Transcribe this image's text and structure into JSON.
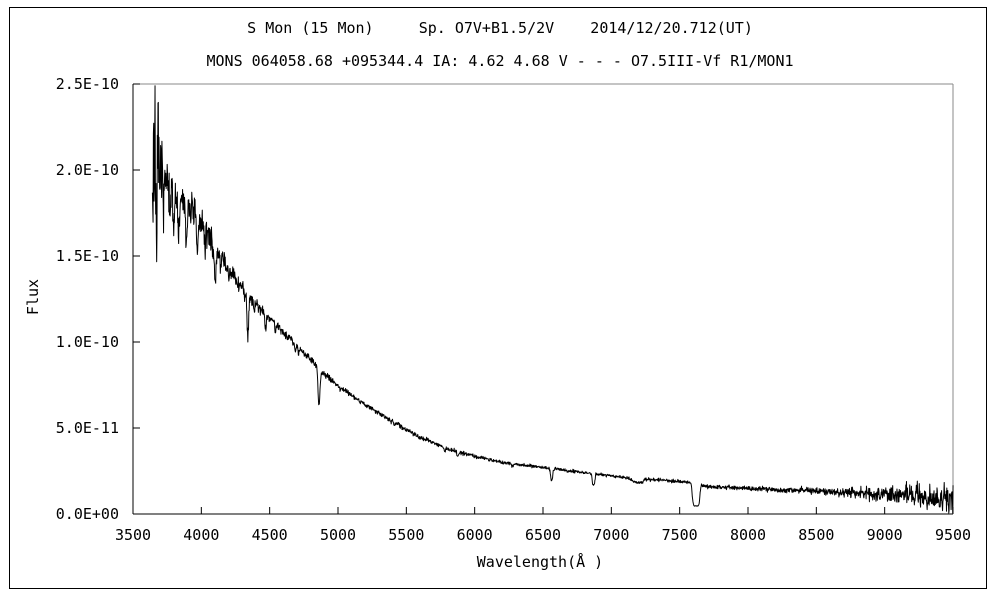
{
  "chart_data": {
    "type": "line",
    "title": "S Mon (15 Mon)     Sp. O7V+B1.5/2V    2014/12/20.712(UT)",
    "subtitle": "MONS 064058.68 +095344.4 IA: 4.62 4.68 V - - - O7.5III-Vf R1/MON1",
    "xlabel": "Wavelength(Å )",
    "ylabel": "Flux",
    "xlim": [
      3500,
      9500
    ],
    "ylim": [
      0,
      2.5
    ],
    "flux_unit_scale": 1e-10,
    "grid": false,
    "legend": "none",
    "colors": {
      "line": "#000000",
      "axis": "#000000",
      "box": "#8a8a8a",
      "text": "#000000",
      "background": "#ffffff"
    },
    "x_ticks": {
      "values": [
        3500,
        4000,
        4500,
        5000,
        5500,
        6000,
        6500,
        7000,
        7500,
        8000,
        8500,
        9000,
        9500
      ],
      "labels": [
        "3500",
        "4000",
        "4500",
        "5000",
        "5500",
        "6000",
        "6500",
        "7000",
        "7500",
        "8000",
        "8500",
        "9000",
        "9500"
      ]
    },
    "y_ticks": {
      "values": [
        0,
        0.5,
        1.0,
        1.5,
        2.0,
        2.5
      ],
      "labels": [
        "0.0E+00",
        "5.0E-11",
        "1.0E-10",
        "1.5E-10",
        "2.0E-10",
        "2.5E-10"
      ]
    },
    "series": {
      "wavelength_range": [
        3642,
        9502
      ],
      "sample_step": 2.4,
      "noise_seed": 7,
      "continuum": [
        [
          3640,
          1.95
        ],
        [
          3700,
          1.93
        ],
        [
          3800,
          1.87
        ],
        [
          3900,
          1.8
        ],
        [
          4000,
          1.7
        ],
        [
          4100,
          1.55
        ],
        [
          4200,
          1.42
        ],
        [
          4300,
          1.31
        ],
        [
          4400,
          1.22
        ],
        [
          4500,
          1.14
        ],
        [
          4600,
          1.06
        ],
        [
          4700,
          0.98
        ],
        [
          4800,
          0.9
        ],
        [
          4900,
          0.81
        ],
        [
          5000,
          0.75
        ],
        [
          5100,
          0.69
        ],
        [
          5200,
          0.635
        ],
        [
          5300,
          0.585
        ],
        [
          5400,
          0.54
        ],
        [
          5500,
          0.49
        ],
        [
          5600,
          0.448
        ],
        [
          5800,
          0.378
        ],
        [
          6000,
          0.337
        ],
        [
          6200,
          0.3
        ],
        [
          6400,
          0.281
        ],
        [
          6600,
          0.262
        ],
        [
          6800,
          0.24
        ],
        [
          7000,
          0.222
        ],
        [
          7200,
          0.205
        ],
        [
          7400,
          0.196
        ],
        [
          7550,
          0.185
        ],
        [
          7700,
          0.158
        ],
        [
          8000,
          0.15
        ],
        [
          8300,
          0.141
        ],
        [
          8600,
          0.131
        ],
        [
          8900,
          0.12
        ],
        [
          9100,
          0.112
        ],
        [
          9300,
          0.103
        ],
        [
          9500,
          0.09
        ]
      ],
      "absorption_lines": [
        [
          3770,
          0.1,
          5
        ],
        [
          3798,
          0.11,
          5
        ],
        [
          3835,
          0.13,
          6
        ],
        [
          3889,
          0.14,
          6
        ],
        [
          3970,
          0.13,
          6
        ],
        [
          4026,
          0.07,
          5
        ],
        [
          4101,
          0.15,
          6
        ],
        [
          4144,
          0.04,
          4
        ],
        [
          4200,
          0.04,
          4
        ],
        [
          4340,
          0.18,
          6
        ],
        [
          4388,
          0.04,
          4
        ],
        [
          4471,
          0.07,
          5
        ],
        [
          4542,
          0.04,
          4
        ],
        [
          4686,
          0.05,
          4
        ],
        [
          4713,
          0.04,
          4
        ],
        [
          4861,
          0.26,
          7
        ],
        [
          5016,
          0.03,
          4
        ],
        [
          5411,
          0.04,
          4
        ],
        [
          5592,
          0.03,
          4
        ],
        [
          5780,
          0.05,
          4
        ],
        [
          5876,
          0.08,
          5
        ],
        [
          6278,
          0.04,
          10
        ],
        [
          6563,
          0.29,
          7
        ],
        [
          6678,
          0.04,
          5
        ],
        [
          6870,
          0.28,
          12,
          4
        ],
        [
          7186,
          0.12,
          28
        ],
        [
          7230,
          0.06,
          8
        ],
        [
          7620,
          0.73,
          30,
          6
        ],
        [
          8227,
          0.05,
          25
        ],
        [
          8650,
          0.04,
          30
        ],
        [
          8950,
          0.06,
          40
        ],
        [
          9350,
          0.07,
          35
        ]
      ],
      "spikes": [
        [
          3650,
          0.44,
          1.8
        ],
        [
          3661,
          0.38,
          1.8
        ],
        [
          3647,
          -0.25,
          1.5
        ],
        [
          3672,
          -0.4,
          2.0
        ],
        [
          3685,
          0.18,
          2.0
        ]
      ],
      "noise_profile": [
        [
          3640,
          0.2
        ],
        [
          3680,
          0.17
        ],
        [
          3720,
          0.11
        ],
        [
          3780,
          0.075
        ],
        [
          3850,
          0.06
        ],
        [
          3950,
          0.05
        ],
        [
          4050,
          0.042
        ],
        [
          4200,
          0.032
        ],
        [
          4350,
          0.024
        ],
        [
          4500,
          0.016
        ],
        [
          4700,
          0.012
        ],
        [
          5000,
          0.009
        ],
        [
          5500,
          0.007
        ],
        [
          6000,
          0.0055
        ],
        [
          6500,
          0.005
        ],
        [
          7000,
          0.005
        ],
        [
          7500,
          0.0055
        ],
        [
          8000,
          0.007
        ],
        [
          8300,
          0.009
        ],
        [
          8600,
          0.013
        ],
        [
          8900,
          0.02
        ],
        [
          9100,
          0.027
        ],
        [
          9300,
          0.038
        ],
        [
          9500,
          0.052
        ]
      ]
    }
  }
}
